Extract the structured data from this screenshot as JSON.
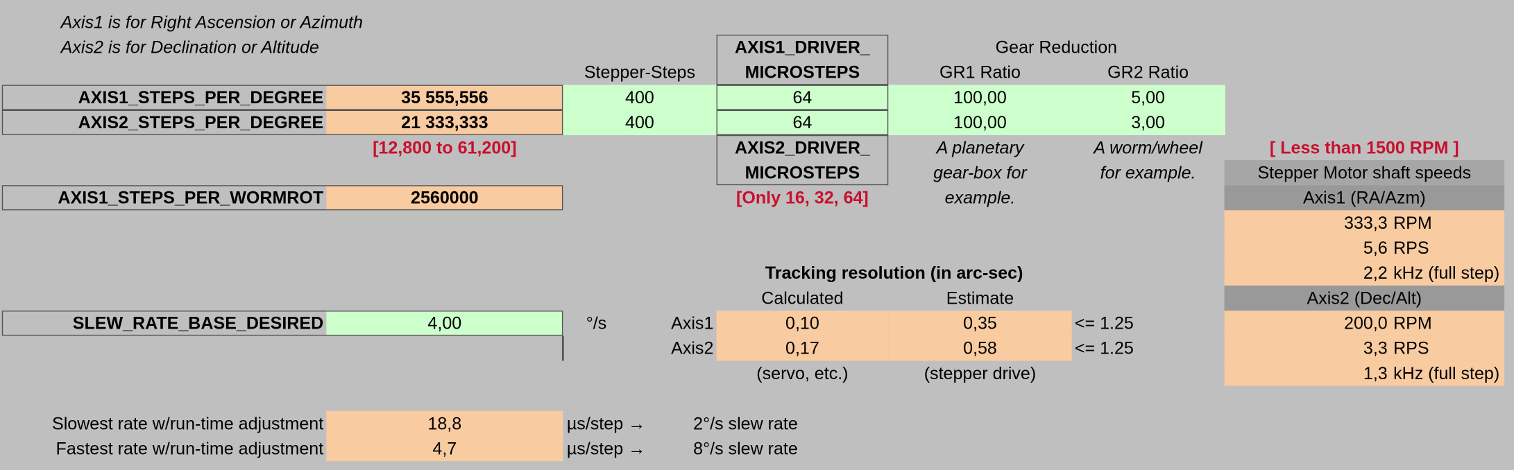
{
  "notes": [
    "Axis1 is for Right Ascension or Azimuth",
    "Axis2 is for Declination or Altitude"
  ],
  "header": {
    "gear_reduction": "Gear Reduction",
    "stepper_steps": "Stepper-Steps",
    "axis1_driver_microsteps": [
      "AXIS1_DRIVER_",
      "MICROSTEPS"
    ],
    "gr1_ratio": "GR1 Ratio",
    "gr2_ratio": "GR2 Ratio"
  },
  "rows": [
    {
      "label": "AXIS1_STEPS_PER_DEGREE",
      "value": "35 555,556",
      "stepper_steps": "400",
      "microsteps": "64",
      "gr1": "100,00",
      "gr2": "5,00"
    },
    {
      "label": "AXIS2_STEPS_PER_DEGREE",
      "value": "21 333,333",
      "stepper_steps": "400",
      "microsteps": "64",
      "gr1": "100,00",
      "gr2": "3,00"
    }
  ],
  "range_note": "[12,800 to 61,200]",
  "axis2_driver_microsteps": [
    "AXIS2_DRIVER_",
    "MICROSTEPS"
  ],
  "microsteps_note": "[Only 16, 32, 64]",
  "gr1_note": [
    "A planetary",
    "gear-box for",
    "example."
  ],
  "gr2_note": [
    "A worm/wheel",
    "for example."
  ],
  "wormrot": {
    "label": "AXIS1_STEPS_PER_WORMROT",
    "value": "2560000"
  },
  "slew": {
    "label": "SLEW_RATE_BASE_DESIRED",
    "value": "4,00",
    "unit": "°/s"
  },
  "tracking": {
    "title": "Tracking resolution (in arc-sec)",
    "calculated": "Calculated",
    "estimate": "Estimate",
    "rows": [
      {
        "axis": "Axis1",
        "calculated": "0,10",
        "estimate": "0,35",
        "limit": "<= 1.25"
      },
      {
        "axis": "Axis2",
        "calculated": "0,17",
        "estimate": "0,58",
        "limit": "<= 1.25"
      }
    ],
    "footnotes": [
      "(servo, etc.)",
      "(stepper drive)"
    ]
  },
  "speeds": {
    "limit": "[ Less than 1500 RPM ]",
    "title": "Stepper Motor shaft speeds",
    "axes": [
      {
        "title": "Axis1 (RA/Azm)",
        "rows": [
          [
            "333,3",
            "RPM"
          ],
          [
            "5,6",
            "RPS"
          ],
          [
            "2,2",
            "kHz (full step)"
          ]
        ]
      },
      {
        "title": "Axis2 (Dec/Alt)",
        "rows": [
          [
            "200,0",
            "RPM"
          ],
          [
            "3,3",
            "RPS"
          ],
          [
            "1,3",
            "kHz (full step)"
          ]
        ]
      }
    ]
  },
  "rates": [
    {
      "label": "Slowest rate w/run-time adjustment",
      "value": "18,8",
      "unit": "µs/step →",
      "note": "2°/s slew rate"
    },
    {
      "label": "Fastest rate w/run-time adjustment",
      "value": "4,7",
      "unit": "µs/step →",
      "note": "8°/s slew rate"
    }
  ]
}
